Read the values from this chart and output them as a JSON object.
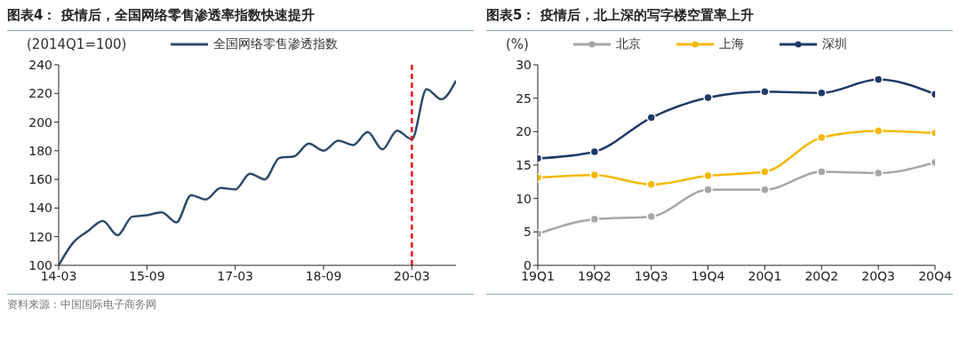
{
  "chart_data": [
    {
      "type": "line",
      "title": "图表4：  疫情后，全国网络零售渗透率指数快速提升",
      "ylabel": "(2014Q1=100)",
      "categories": [
        "14-03",
        null,
        null,
        null,
        null,
        null,
        "15-09",
        null,
        null,
        null,
        null,
        null,
        "17-03",
        null,
        null,
        null,
        null,
        null,
        "18-09",
        null,
        null,
        null,
        null,
        null,
        "20-03",
        null,
        null,
        null
      ],
      "series": [
        {
          "name": "全国网络零售渗透指数",
          "color": "#2e4a6b",
          "values": [
            100,
            116,
            124,
            131,
            121,
            134,
            135,
            137,
            130,
            149,
            146,
            154,
            153,
            164,
            160,
            175,
            176,
            185,
            180,
            187,
            184,
            193,
            181,
            194,
            188,
            223,
            216,
            229
          ]
        }
      ],
      "ylim": [
        100,
        240
      ],
      "yticks": [
        100,
        120,
        140,
        160,
        180,
        200,
        220,
        240
      ],
      "grid": false,
      "legend": "top",
      "marker": "none",
      "line_style": "solid",
      "ref_lines": [
        {
          "axis": "x",
          "value": "20-03",
          "color": "#e8191d",
          "line_style": "dashed"
        }
      ],
      "annotations": [
        "资料来源：中国国际电子商务网"
      ]
    },
    {
      "type": "line",
      "title": "图表5：  疫情后，北上深的写字楼空置率上升",
      "ylabel": "(%)",
      "categories": [
        "19Q1",
        "19Q2",
        "19Q3",
        "19Q4",
        "20Q1",
        "20Q2",
        "20Q3",
        "20Q4"
      ],
      "series": [
        {
          "name": "北京",
          "color": "#a6a6a6",
          "values": [
            4.7,
            6.9,
            7.3,
            11.3,
            11.3,
            14.0,
            13.8,
            15.4
          ]
        },
        {
          "name": "上海",
          "color": "#f5b800",
          "values": [
            13.1,
            13.5,
            12.1,
            13.4,
            14.0,
            19.1,
            20.1,
            19.8
          ]
        },
        {
          "name": "深圳",
          "color": "#1f3a68",
          "values": [
            16.0,
            17.0,
            22.1,
            25.1,
            26.0,
            25.8,
            27.8,
            25.6
          ]
        }
      ],
      "ylim": [
        0,
        30
      ],
      "yticks": [
        0,
        5,
        10,
        15,
        20,
        25,
        30
      ],
      "grid": false,
      "legend": "top",
      "marker": "circle",
      "line_style": "solid"
    }
  ]
}
